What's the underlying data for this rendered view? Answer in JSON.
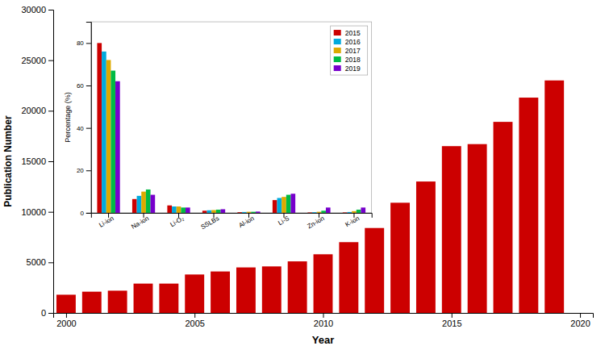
{
  "chart_data": [
    {
      "type": "bar",
      "xlabel": "Year",
      "ylabel": "Publication Number",
      "x": [
        2000,
        2001,
        2002,
        2003,
        2004,
        2005,
        2006,
        2007,
        2008,
        2009,
        2010,
        2011,
        2012,
        2013,
        2014,
        2015,
        2016,
        2017,
        2018,
        2019
      ],
      "values": [
        1800,
        2100,
        2200,
        2900,
        2900,
        3800,
        4100,
        4500,
        4600,
        5100,
        5800,
        7000,
        8400,
        10900,
        13000,
        16500,
        16700,
        18900,
        21300,
        23000
      ],
      "color": "#cc0000",
      "xlim": [
        1999.5,
        2020.5
      ],
      "xticks": [
        2000,
        2005,
        2010,
        2015,
        2020
      ],
      "ylim": [
        0,
        30000
      ],
      "yticks": [
        0,
        5000,
        10000,
        15000,
        20000,
        25000,
        30000
      ]
    },
    {
      "type": "bar",
      "ylabel": "Percentage (%)",
      "categories": [
        "Li-ion",
        "Na-ion",
        "Li-O₂",
        "SSLBs",
        "Al-ion",
        "Li-S",
        "Zn-ion",
        "K-ion"
      ],
      "series": [
        {
          "name": "2015",
          "color": "#cc0000",
          "values": [
            80,
            6.5,
            3.5,
            1.0,
            0.3,
            6.0,
            0.2,
            0.2
          ]
        },
        {
          "name": "2016",
          "color": "#00aadd",
          "values": [
            76,
            8.0,
            3.0,
            1.2,
            0.4,
            7.0,
            0.3,
            0.4
          ]
        },
        {
          "name": "2017",
          "color": "#ddaa00",
          "values": [
            72,
            10.0,
            3.0,
            1.3,
            0.5,
            7.5,
            0.5,
            0.8
          ]
        },
        {
          "name": "2018",
          "color": "#00bb44",
          "values": [
            67,
            11.0,
            2.5,
            1.5,
            0.5,
            8.5,
            1.0,
            1.5
          ]
        },
        {
          "name": "2019",
          "color": "#7700cc",
          "values": [
            62,
            8.5,
            2.5,
            1.7,
            0.6,
            9.0,
            2.5,
            2.5
          ]
        }
      ],
      "ylim": [
        0,
        90
      ],
      "yticks": [
        0,
        20,
        40,
        60,
        80
      ],
      "legend": "upper-right"
    }
  ]
}
